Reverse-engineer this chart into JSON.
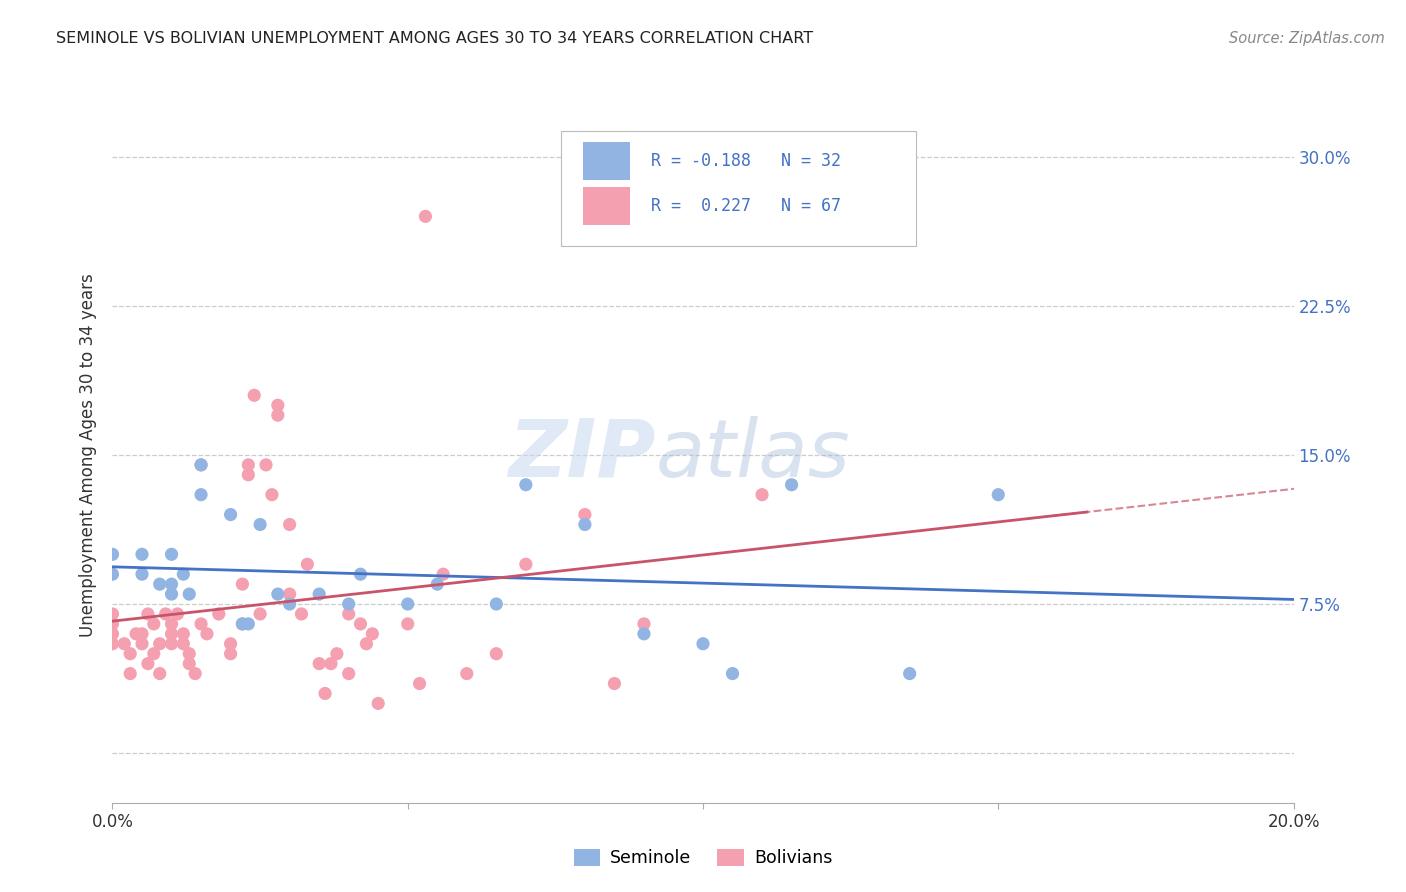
{
  "title": "SEMINOLE VS BOLIVIAN UNEMPLOYMENT AMONG AGES 30 TO 34 YEARS CORRELATION CHART",
  "source": "Source: ZipAtlas.com",
  "ylabel": "Unemployment Among Ages 30 to 34 years",
  "xlim": [
    0.0,
    0.2
  ],
  "ylim": [
    -0.025,
    0.325
  ],
  "yticks": [
    0.0,
    0.075,
    0.15,
    0.225,
    0.3
  ],
  "ytick_labels": [
    "",
    "7.5%",
    "15.0%",
    "22.5%",
    "30.0%"
  ],
  "xticks": [
    0.0,
    0.05,
    0.1,
    0.15,
    0.2
  ],
  "xtick_labels": [
    "0.0%",
    "",
    "",
    "",
    "20.0%"
  ],
  "legend_labels": [
    "Seminole",
    "Bolivians"
  ],
  "seminole_color": "#92b4e3",
  "bolivian_color": "#f4a0b0",
  "trend_seminole_color": "#4472c4",
  "trend_bolivian_color": "#c9546a",
  "watermark_zip": "ZIP",
  "watermark_atlas": "atlas",
  "seminole_R": -0.188,
  "seminole_N": 32,
  "bolivian_R": 0.227,
  "bolivian_N": 67,
  "seminole_points": [
    [
      0.0,
      0.09
    ],
    [
      0.0,
      0.1
    ],
    [
      0.005,
      0.1
    ],
    [
      0.005,
      0.09
    ],
    [
      0.008,
      0.085
    ],
    [
      0.01,
      0.1
    ],
    [
      0.01,
      0.085
    ],
    [
      0.01,
      0.08
    ],
    [
      0.012,
      0.09
    ],
    [
      0.013,
      0.08
    ],
    [
      0.015,
      0.13
    ],
    [
      0.015,
      0.145
    ],
    [
      0.02,
      0.12
    ],
    [
      0.022,
      0.065
    ],
    [
      0.023,
      0.065
    ],
    [
      0.025,
      0.115
    ],
    [
      0.028,
      0.08
    ],
    [
      0.03,
      0.075
    ],
    [
      0.035,
      0.08
    ],
    [
      0.04,
      0.075
    ],
    [
      0.042,
      0.09
    ],
    [
      0.05,
      0.075
    ],
    [
      0.055,
      0.085
    ],
    [
      0.065,
      0.075
    ],
    [
      0.07,
      0.135
    ],
    [
      0.08,
      0.115
    ],
    [
      0.09,
      0.06
    ],
    [
      0.1,
      0.055
    ],
    [
      0.105,
      0.04
    ],
    [
      0.115,
      0.135
    ],
    [
      0.135,
      0.04
    ],
    [
      0.15,
      0.13
    ]
  ],
  "bolivian_points": [
    [
      0.0,
      0.055
    ],
    [
      0.0,
      0.06
    ],
    [
      0.0,
      0.065
    ],
    [
      0.0,
      0.07
    ],
    [
      0.002,
      0.055
    ],
    [
      0.003,
      0.05
    ],
    [
      0.003,
      0.04
    ],
    [
      0.004,
      0.06
    ],
    [
      0.005,
      0.055
    ],
    [
      0.005,
      0.06
    ],
    [
      0.006,
      0.045
    ],
    [
      0.006,
      0.07
    ],
    [
      0.007,
      0.065
    ],
    [
      0.007,
      0.05
    ],
    [
      0.008,
      0.055
    ],
    [
      0.008,
      0.04
    ],
    [
      0.009,
      0.07
    ],
    [
      0.01,
      0.065
    ],
    [
      0.01,
      0.06
    ],
    [
      0.01,
      0.055
    ],
    [
      0.011,
      0.07
    ],
    [
      0.012,
      0.055
    ],
    [
      0.012,
      0.06
    ],
    [
      0.013,
      0.05
    ],
    [
      0.013,
      0.045
    ],
    [
      0.014,
      0.04
    ],
    [
      0.015,
      0.065
    ],
    [
      0.015,
      0.145
    ],
    [
      0.016,
      0.06
    ],
    [
      0.018,
      0.07
    ],
    [
      0.02,
      0.055
    ],
    [
      0.02,
      0.05
    ],
    [
      0.022,
      0.065
    ],
    [
      0.022,
      0.085
    ],
    [
      0.023,
      0.14
    ],
    [
      0.023,
      0.145
    ],
    [
      0.024,
      0.18
    ],
    [
      0.025,
      0.07
    ],
    [
      0.026,
      0.145
    ],
    [
      0.027,
      0.13
    ],
    [
      0.028,
      0.17
    ],
    [
      0.028,
      0.175
    ],
    [
      0.03,
      0.115
    ],
    [
      0.03,
      0.08
    ],
    [
      0.032,
      0.07
    ],
    [
      0.033,
      0.095
    ],
    [
      0.035,
      0.045
    ],
    [
      0.036,
      0.03
    ],
    [
      0.037,
      0.045
    ],
    [
      0.038,
      0.05
    ],
    [
      0.04,
      0.04
    ],
    [
      0.04,
      0.07
    ],
    [
      0.042,
      0.065
    ],
    [
      0.043,
      0.055
    ],
    [
      0.044,
      0.06
    ],
    [
      0.045,
      0.025
    ],
    [
      0.05,
      0.065
    ],
    [
      0.052,
      0.035
    ],
    [
      0.053,
      0.27
    ],
    [
      0.056,
      0.09
    ],
    [
      0.06,
      0.04
    ],
    [
      0.065,
      0.05
    ],
    [
      0.07,
      0.095
    ],
    [
      0.08,
      0.12
    ],
    [
      0.085,
      0.035
    ],
    [
      0.09,
      0.065
    ],
    [
      0.11,
      0.13
    ]
  ]
}
